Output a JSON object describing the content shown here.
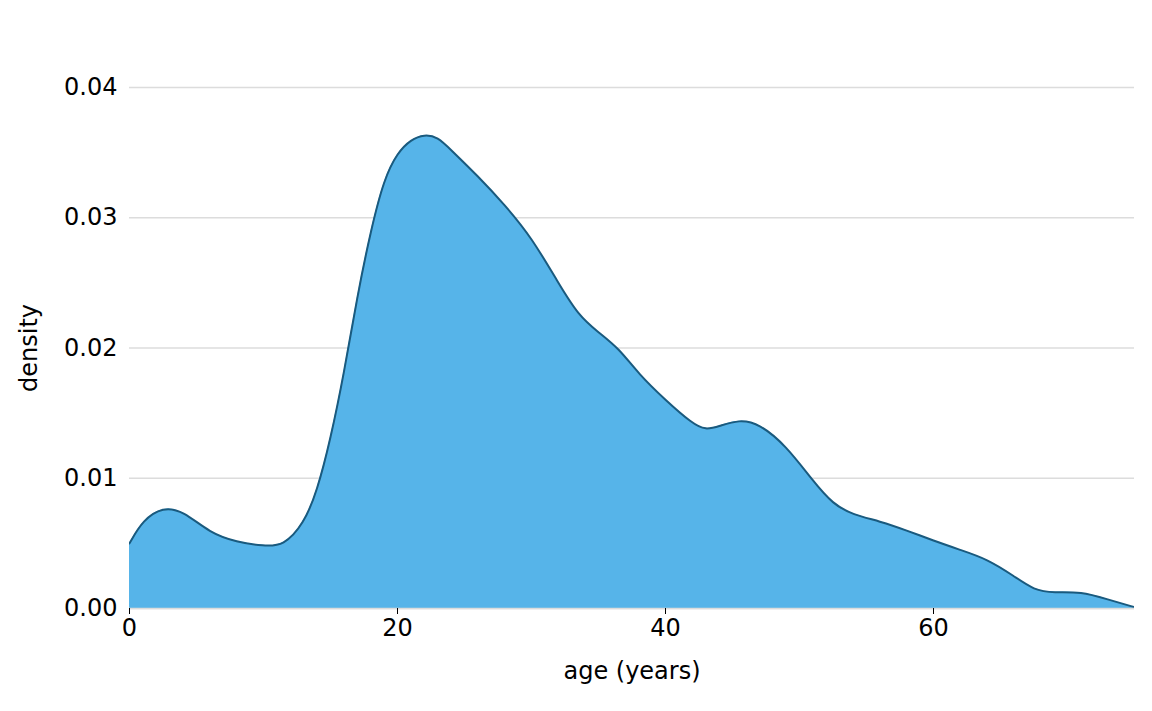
{
  "chart_data": {
    "type": "area",
    "x_label": "age (years)",
    "y_label": "density",
    "color": "#56B4E9",
    "grid": true,
    "xlim": [
      0,
      75
    ],
    "xticks": [
      0,
      20,
      40,
      60
    ],
    "ylim": [
      0,
      0.04
    ],
    "yticks": [
      {
        "value": 0,
        "label": "0.00"
      },
      0.01,
      0.02,
      0.03,
      0.04
    ],
    "x": [
      0,
      1,
      2.5,
      4,
      6,
      8,
      10,
      11.5,
      13,
      14,
      15,
      16,
      17,
      18,
      19,
      20,
      21,
      22,
      23,
      24,
      26,
      28,
      30,
      32,
      33.5,
      35,
      36.5,
      38,
      40,
      42,
      43,
      44,
      45.5,
      47,
      49,
      51,
      52.5,
      54,
      56,
      58,
      60,
      62,
      64,
      66,
      67.5,
      69,
      71,
      73,
      75
    ],
    "values": [
      0.005,
      0.0068,
      0.0078,
      0.0075,
      0.0058,
      0.0051,
      0.0048,
      0.0048,
      0.0065,
      0.009,
      0.013,
      0.018,
      0.024,
      0.029,
      0.033,
      0.035,
      0.036,
      0.0364,
      0.0362,
      0.0352,
      0.0332,
      0.031,
      0.0285,
      0.025,
      0.0225,
      0.0212,
      0.02,
      0.018,
      0.016,
      0.0142,
      0.0137,
      0.014,
      0.0145,
      0.0142,
      0.0125,
      0.0098,
      0.008,
      0.0072,
      0.0067,
      0.006,
      0.0052,
      0.0045,
      0.0038,
      0.0025,
      0.0014,
      0.0012,
      0.0013,
      0.0007,
      0.0001
    ]
  }
}
